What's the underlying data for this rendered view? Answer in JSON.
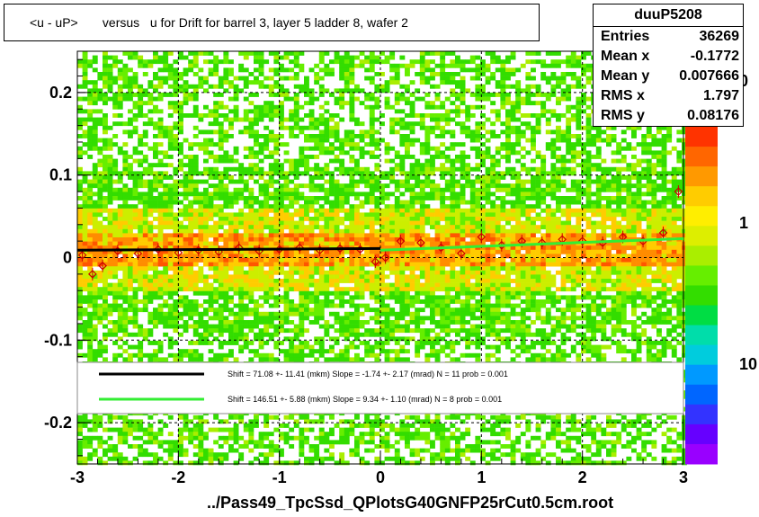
{
  "title": "<u - uP>       versus   u for Drift for barrel 3, layer 5 ladder 8, wafer 2",
  "stats": {
    "name": "duuP5208",
    "rows": [
      {
        "label": "Entries",
        "value": "36269"
      },
      {
        "label": "Mean x",
        "value": "-0.1772"
      },
      {
        "label": "Mean y",
        "value": "0.007666"
      },
      {
        "label": "RMS x",
        "value": "1.797"
      },
      {
        "label": "RMS y",
        "value": "0.08176"
      }
    ]
  },
  "footer": "../Pass49_TpcSsd_QPlotsG40GNFP25rCut0.5cm.root",
  "legend": {
    "entries": [
      {
        "color": "#000000",
        "text": "Shift =    71.08 +- 11.41 (mkm) Slope =    -1.74 +- 2.17 (mrad)  N = 11 prob = 0.001"
      },
      {
        "color": "#33ee33",
        "text": "Shift =    146.51 +- 5.88 (mkm) Slope =    9.34 +- 1.10 (mrad)  N = 8 prob = 0.001"
      }
    ]
  },
  "colorbar": {
    "labels": [
      "0",
      "1",
      "10"
    ]
  },
  "chart_data": {
    "type": "heatmap",
    "title": "<u - uP>       versus   u for Drift for barrel 3, layer 5 ladder 8, wafer 2",
    "xlabel": "",
    "ylabel": "",
    "xlim": [
      -3,
      3
    ],
    "ylim": [
      -0.25,
      0.25
    ],
    "x_ticks": [
      -3,
      -2,
      -1,
      0,
      1,
      2,
      3
    ],
    "y_ticks": [
      -0.2,
      -0.1,
      0,
      0.1,
      0.2
    ],
    "grid": true,
    "profile": {
      "x": [
        -2.95,
        -2.85,
        -2.75,
        -2.6,
        -2.4,
        -2.2,
        -2.0,
        -1.8,
        -1.6,
        -1.4,
        -1.2,
        -1.0,
        -0.8,
        -0.6,
        -0.4,
        -0.2,
        -0.05,
        0.05,
        0.2,
        0.4,
        0.6,
        0.8,
        1.0,
        1.2,
        1.4,
        1.6,
        1.8,
        2.0,
        2.2,
        2.4,
        2.6,
        2.8,
        2.95
      ],
      "y": [
        0.003,
        -0.02,
        -0.01,
        0.008,
        0.005,
        0.01,
        0.006,
        0.009,
        0.007,
        0.012,
        0.008,
        0.01,
        0.012,
        0.009,
        0.011,
        0.01,
        -0.005,
        0.0,
        0.02,
        0.018,
        0.012,
        0.005,
        0.025,
        0.015,
        0.02,
        0.018,
        0.022,
        0.02,
        0.018,
        0.025,
        0.02,
        0.03,
        0.08
      ]
    },
    "fits": [
      {
        "name": "Shift = 71.08 +- 11.41 (mkm) Slope = -1.74 +- 2.17 (mrad) N = 11 prob = 0.001",
        "color": "#000000",
        "x": [
          -3,
          0
        ],
        "y": [
          0.009,
          0.011
        ]
      },
      {
        "name": "Shift = 146.51 +- 5.88 (mkm) Slope = 9.34 +- 1.10 (mrad) N = 8 prob = 0.001",
        "color": "#33ee33",
        "x": [
          0,
          3
        ],
        "y": [
          0.009,
          0.023
        ]
      }
    ]
  }
}
